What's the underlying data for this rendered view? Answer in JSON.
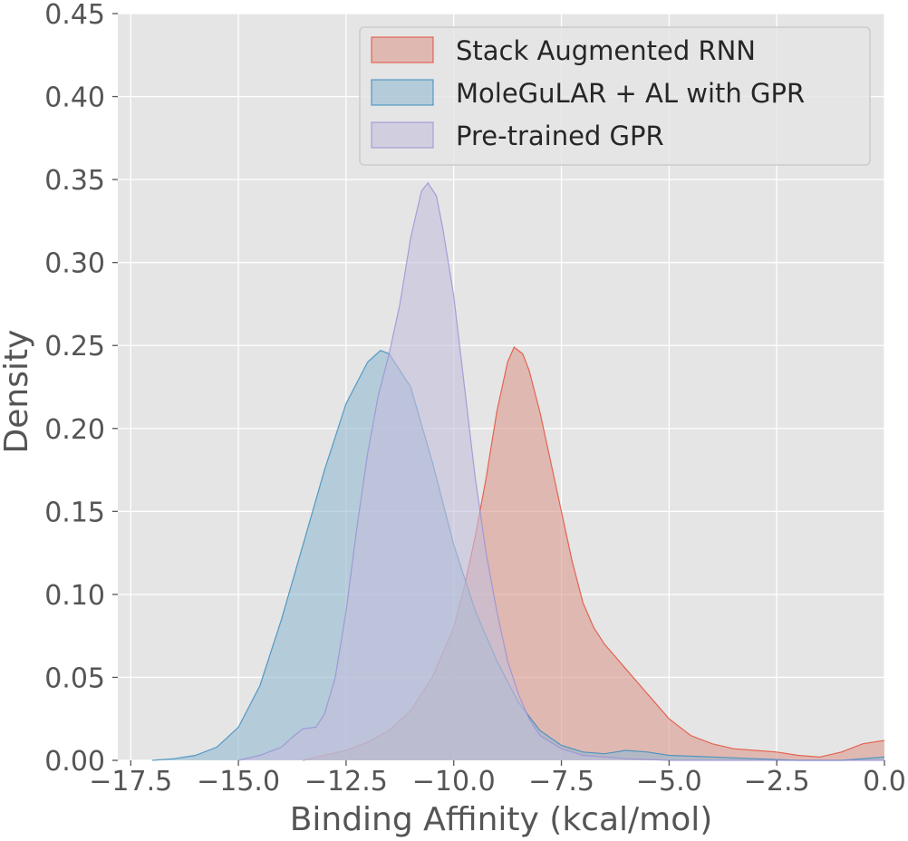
{
  "chart_data": {
    "type": "area",
    "title": "",
    "xlabel": "Binding Affinity (kcal/mol)",
    "ylabel": "Density",
    "xlim": [
      -17.8,
      0.0
    ],
    "ylim": [
      0.0,
      0.45
    ],
    "x_ticks": [
      -17.5,
      -15.0,
      -12.5,
      -10.0,
      -7.5,
      -5.0,
      -2.5,
      0.0
    ],
    "x_tick_labels": [
      "−17.5",
      "−15.0",
      "−12.5",
      "−10.0",
      "−7.5",
      "−5.0",
      "−2.5",
      "0.0"
    ],
    "y_ticks": [
      0.0,
      0.05,
      0.1,
      0.15,
      0.2,
      0.25,
      0.3,
      0.35,
      0.4,
      0.45
    ],
    "y_tick_labels": [
      "0.00",
      "0.05",
      "0.10",
      "0.15",
      "0.20",
      "0.25",
      "0.30",
      "0.35",
      "0.40",
      "0.45"
    ],
    "grid": true,
    "legend_position": "top-right",
    "series": [
      {
        "name": "Stack Augmented RNN",
        "color": "#e24a33",
        "fill": "#dc9a90",
        "points": [
          [
            -13.5,
            0.0
          ],
          [
            -13.0,
            0.003
          ],
          [
            -12.5,
            0.006
          ],
          [
            -12.0,
            0.011
          ],
          [
            -11.5,
            0.018
          ],
          [
            -11.0,
            0.03
          ],
          [
            -10.5,
            0.05
          ],
          [
            -10.0,
            0.08
          ],
          [
            -9.75,
            0.105
          ],
          [
            -9.5,
            0.135
          ],
          [
            -9.25,
            0.17
          ],
          [
            -9.0,
            0.21
          ],
          [
            -8.75,
            0.24
          ],
          [
            -8.6,
            0.249
          ],
          [
            -8.4,
            0.245
          ],
          [
            -8.25,
            0.235
          ],
          [
            -8.0,
            0.21
          ],
          [
            -7.75,
            0.18
          ],
          [
            -7.5,
            0.15
          ],
          [
            -7.25,
            0.12
          ],
          [
            -7.0,
            0.095
          ],
          [
            -6.75,
            0.08
          ],
          [
            -6.5,
            0.07
          ],
          [
            -6.0,
            0.055
          ],
          [
            -5.5,
            0.04
          ],
          [
            -5.0,
            0.025
          ],
          [
            -4.5,
            0.015
          ],
          [
            -4.0,
            0.01
          ],
          [
            -3.5,
            0.007
          ],
          [
            -3.0,
            0.006
          ],
          [
            -2.5,
            0.005
          ],
          [
            -2.0,
            0.003
          ],
          [
            -1.5,
            0.002
          ],
          [
            -1.0,
            0.005
          ],
          [
            -0.5,
            0.01
          ],
          [
            0.0,
            0.012
          ]
        ]
      },
      {
        "name": "MoleGuLAR + AL with GPR",
        "color": "#348abd",
        "fill": "#93b9d0",
        "points": [
          [
            -17.0,
            0.0
          ],
          [
            -16.5,
            0.001
          ],
          [
            -16.0,
            0.003
          ],
          [
            -15.5,
            0.008
          ],
          [
            -15.0,
            0.02
          ],
          [
            -14.5,
            0.045
          ],
          [
            -14.0,
            0.085
          ],
          [
            -13.5,
            0.13
          ],
          [
            -13.0,
            0.175
          ],
          [
            -12.5,
            0.215
          ],
          [
            -12.0,
            0.24
          ],
          [
            -11.7,
            0.247
          ],
          [
            -11.5,
            0.245
          ],
          [
            -11.0,
            0.225
          ],
          [
            -10.5,
            0.18
          ],
          [
            -10.0,
            0.13
          ],
          [
            -9.5,
            0.09
          ],
          [
            -9.0,
            0.06
          ],
          [
            -8.5,
            0.035
          ],
          [
            -8.0,
            0.018
          ],
          [
            -7.5,
            0.009
          ],
          [
            -7.0,
            0.005
          ],
          [
            -6.5,
            0.004
          ],
          [
            -6.0,
            0.006
          ],
          [
            -5.5,
            0.005
          ],
          [
            -5.0,
            0.003
          ],
          [
            -4.0,
            0.002
          ],
          [
            -3.0,
            0.001
          ],
          [
            -2.0,
            0.0
          ],
          [
            -1.0,
            0.0
          ],
          [
            0.0,
            0.002
          ]
        ]
      },
      {
        "name": "Pre-trained GPR",
        "color": "#988ed5",
        "fill": "#c3bedb",
        "points": [
          [
            -15.0,
            0.0
          ],
          [
            -14.5,
            0.003
          ],
          [
            -14.0,
            0.008
          ],
          [
            -13.7,
            0.015
          ],
          [
            -13.5,
            0.019
          ],
          [
            -13.2,
            0.02
          ],
          [
            -13.0,
            0.028
          ],
          [
            -12.75,
            0.05
          ],
          [
            -12.5,
            0.09
          ],
          [
            -12.25,
            0.14
          ],
          [
            -12.0,
            0.185
          ],
          [
            -11.75,
            0.22
          ],
          [
            -11.5,
            0.245
          ],
          [
            -11.25,
            0.275
          ],
          [
            -11.0,
            0.315
          ],
          [
            -10.75,
            0.343
          ],
          [
            -10.6,
            0.348
          ],
          [
            -10.4,
            0.34
          ],
          [
            -10.25,
            0.32
          ],
          [
            -10.0,
            0.28
          ],
          [
            -9.75,
            0.225
          ],
          [
            -9.5,
            0.17
          ],
          [
            -9.25,
            0.125
          ],
          [
            -9.0,
            0.09
          ],
          [
            -8.75,
            0.06
          ],
          [
            -8.5,
            0.04
          ],
          [
            -8.25,
            0.025
          ],
          [
            -8.0,
            0.015
          ],
          [
            -7.5,
            0.007
          ],
          [
            -7.0,
            0.003
          ],
          [
            -6.5,
            0.002
          ],
          [
            -6.0,
            0.001
          ],
          [
            -5.0,
            0.0
          ],
          [
            -3.0,
            0.0
          ],
          [
            0.0,
            0.0
          ]
        ]
      }
    ]
  }
}
